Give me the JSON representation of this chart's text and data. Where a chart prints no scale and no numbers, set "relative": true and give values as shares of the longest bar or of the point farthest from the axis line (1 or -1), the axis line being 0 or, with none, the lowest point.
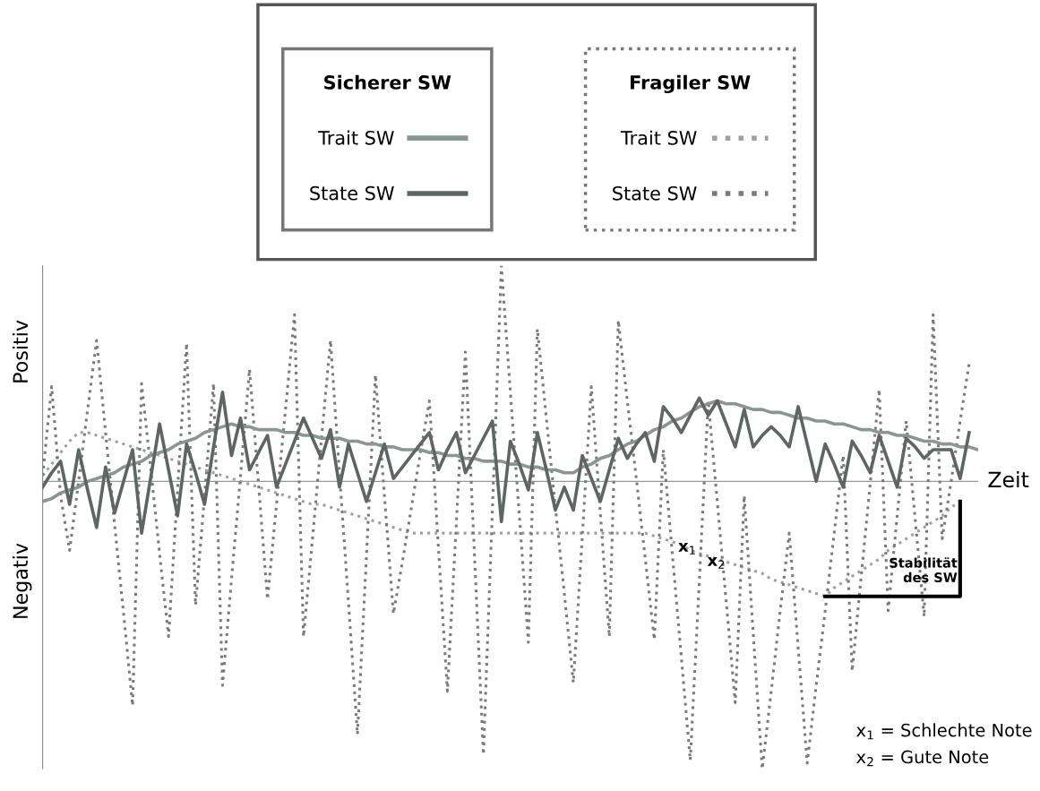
{
  "chart_data": {
    "type": "line",
    "relative": true,
    "xlabel": "Zeit",
    "legend": "top",
    "categories": [
      null,
      null,
      null,
      null,
      null,
      null,
      null,
      null,
      null,
      null,
      null,
      null,
      null,
      null,
      null,
      null,
      null,
      null,
      null,
      null,
      null,
      null,
      null,
      null,
      null,
      null,
      null,
      null,
      null,
      null,
      null,
      null,
      null,
      null,
      null,
      null,
      null,
      null,
      null,
      null,
      null,
      null,
      null,
      null,
      null,
      null,
      null,
      null,
      null,
      null,
      null,
      null,
      null,
      null,
      null,
      null,
      null,
      null,
      null,
      null,
      null,
      null,
      null,
      null,
      null,
      null,
      null,
      null,
      null,
      null,
      null,
      null,
      null,
      null,
      null,
      null,
      null,
      null,
      null,
      null,
      null,
      null,
      null,
      null,
      null,
      null,
      null,
      null,
      null,
      null,
      null,
      null,
      null,
      null,
      null,
      null,
      null,
      null,
      null,
      null,
      null,
      null,
      null,
      null,
      null
    ],
    "annotations": [
      "Sicherer SW",
      "Fragiler SW",
      "Positiv",
      "Negativ",
      "Stabilität\ndes SW",
      "x$_{1}$",
      "x$_{2}$",
      "x$_{1}$ = Schlechte Note",
      "x$_{2}$ = Gute Note"
    ],
    "series": [
      {
        "name": "Trait SW",
        "color": "#8a9690",
        "line_style": "solid",
        "values": [
          -0.07,
          -0.06,
          -0.04,
          -0.03,
          -0.02,
          0.0,
          0.01,
          0.02,
          0.03,
          0.05,
          0.06,
          0.07,
          0.09,
          0.1,
          0.11,
          0.13,
          0.14,
          0.15,
          0.17,
          0.18,
          0.19,
          0.2,
          0.19,
          0.19,
          0.18,
          0.18,
          0.18,
          0.17,
          0.17,
          0.16,
          0.16,
          0.15,
          0.15,
          0.15,
          0.14,
          0.14,
          0.13,
          0.13,
          0.12,
          0.12,
          0.11,
          0.11,
          0.11,
          0.1,
          0.1,
          0.09,
          0.09,
          0.08,
          0.08,
          0.07,
          0.07,
          0.07,
          0.06,
          0.06,
          0.05,
          0.05,
          0.04,
          0.04,
          0.03,
          0.03,
          0.05,
          0.06,
          0.08,
          0.09,
          0.11,
          0.13,
          0.14,
          0.16,
          0.18,
          0.19,
          0.21,
          0.22,
          0.24,
          0.26,
          0.27,
          0.28,
          0.27,
          0.27,
          0.26,
          0.25,
          0.25,
          0.24,
          0.24,
          0.23,
          0.22,
          0.22,
          0.21,
          0.21,
          0.2,
          0.2,
          0.19,
          0.18,
          0.18,
          0.17,
          0.17,
          0.16,
          0.16,
          0.15,
          0.14,
          0.14,
          0.13,
          0.13,
          0.12,
          0.12,
          0.11
        ]
      },
      {
        "name": "State SW",
        "color": "#5f6562",
        "line_style": "solid",
        "values": [
          -0.02,
          0.03,
          0.07,
          -0.08,
          0.11,
          -0.03,
          -0.16,
          0.05,
          -0.11,
          0.0,
          0.11,
          -0.18,
          0.01,
          0.2,
          0.04,
          -0.12,
          0.13,
          0.03,
          -0.08,
          0.12,
          0.31,
          0.09,
          0.22,
          0.04,
          0.1,
          0.16,
          -0.02,
          0.06,
          0.14,
          0.22,
          0.15,
          0.08,
          0.18,
          -0.02,
          0.13,
          0.03,
          -0.07,
          0.03,
          0.13,
          0.01,
          0.05,
          0.09,
          0.13,
          0.17,
          0.04,
          0.11,
          0.17,
          0.03,
          0.09,
          0.15,
          0.21,
          -0.14,
          0.14,
          0.06,
          -0.03,
          0.17,
          0.04,
          -0.1,
          -0.02,
          -0.1,
          0.09,
          0.01,
          -0.07,
          0.04,
          0.15,
          0.08,
          0.13,
          0.17,
          0.07,
          0.26,
          0.22,
          0.17,
          0.23,
          0.29,
          0.23,
          0.28,
          0.2,
          0.12,
          0.25,
          0.12,
          0.16,
          0.19,
          0.16,
          0.12,
          0.26,
          0.13,
          0.0,
          0.13,
          0.06,
          -0.02,
          0.14,
          0.09,
          0.03,
          0.16,
          0.07,
          -0.02,
          0.15,
          0.12,
          0.08,
          0.11,
          0.11,
          0.11,
          0.01,
          0.17,
          null
        ]
      },
      {
        "name": "Trait SW",
        "color": "#9aa39e",
        "line_style": "dotted",
        "values": [
          0.02,
          0.06,
          0.1,
          0.14,
          0.17,
          0.17,
          0.16,
          0.15,
          0.14,
          0.13,
          0.12,
          0.11,
          0.1,
          0.09,
          0.08,
          0.07,
          0.06,
          0.05,
          0.04,
          0.03,
          0.02,
          0.01,
          0.0,
          -0.01,
          -0.02,
          -0.03,
          -0.04,
          -0.05,
          -0.06,
          -0.07,
          -0.08,
          -0.08,
          -0.09,
          -0.1,
          -0.11,
          -0.12,
          -0.13,
          -0.14,
          -0.15,
          -0.16,
          -0.17,
          -0.18,
          -0.18,
          -0.18,
          -0.18,
          -0.18,
          -0.18,
          -0.18,
          -0.18,
          -0.18,
          -0.18,
          -0.18,
          -0.18,
          -0.18,
          -0.18,
          -0.18,
          -0.18,
          -0.18,
          -0.18,
          -0.18,
          -0.18,
          -0.18,
          -0.18,
          -0.18,
          -0.18,
          -0.18,
          -0.18,
          -0.18,
          -0.19,
          -0.2,
          -0.21,
          -0.22,
          -0.24,
          -0.25,
          -0.26,
          -0.27,
          -0.28,
          -0.29,
          -0.3,
          -0.31,
          -0.32,
          -0.34,
          -0.35,
          -0.36,
          -0.37,
          -0.38,
          -0.39,
          -0.4,
          -0.37,
          -0.35,
          -0.33,
          -0.31,
          -0.29,
          -0.27,
          -0.24,
          -0.22,
          -0.2,
          -0.18,
          -0.16,
          -0.14,
          -0.12,
          -0.09,
          -0.07,
          null,
          null
        ]
      },
      {
        "name": "State SW",
        "color": "#7a7a7a",
        "line_style": "dotted",
        "values": [
          0.02,
          0.33,
          -0.05,
          -0.24,
          0.0,
          0.25,
          0.49,
          0.17,
          -0.15,
          -0.46,
          -0.78,
          0.34,
          0.05,
          -0.25,
          -0.54,
          -0.03,
          0.48,
          -0.43,
          -0.05,
          0.34,
          -0.71,
          -0.34,
          0.02,
          0.39,
          -0.01,
          -0.41,
          -0.08,
          0.25,
          0.58,
          -0.54,
          -0.2,
          0.15,
          0.49,
          0.03,
          -0.42,
          -0.88,
          -0.26,
          0.37,
          -0.05,
          -0.46,
          -0.28,
          -0.09,
          0.1,
          0.28,
          -0.23,
          -0.73,
          -0.14,
          0.45,
          -0.25,
          -0.95,
          -0.1,
          0.75,
          0.31,
          -0.12,
          -0.56,
          0.53,
          0.22,
          -0.09,
          -0.39,
          -0.7,
          -0.19,
          0.33,
          -0.11,
          -0.54,
          0.56,
          0.28,
          0.01,
          -0.27,
          -0.55,
          0.11,
          -0.25,
          -0.61,
          -0.97,
          -0.35,
          0.28,
          -0.07,
          -0.42,
          -0.77,
          -0.05,
          -0.53,
          -1.0,
          -0.73,
          -0.45,
          -0.18,
          -0.58,
          -0.98,
          -0.71,
          -0.45,
          -0.18,
          0.09,
          -0.66,
          -0.33,
          -0.01,
          0.32,
          -0.45,
          -0.12,
          0.21,
          -0.13,
          -0.47,
          0.58,
          -0.2,
          0.0,
          0.21,
          0.41,
          null
        ]
      }
    ]
  }
}
